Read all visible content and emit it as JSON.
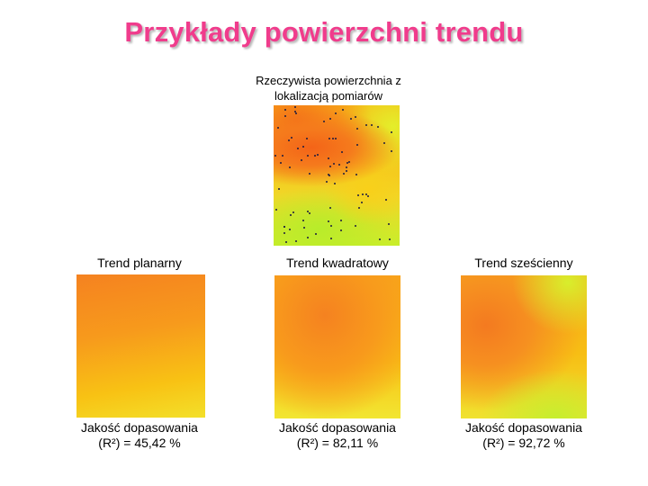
{
  "title": "Przykłady powierzchni trendu",
  "main": {
    "caption_line1": "Rzeczywista powierzchnia z",
    "caption_line2": "lokalizacją pomiarów"
  },
  "panels": [
    {
      "label": "Trend planarny",
      "fit_line1": "Jakość dopasowania",
      "fit_line2": "(R²) = 45,42 %"
    },
    {
      "label": "Trend kwadratowy",
      "fit_line1": "Jakość dopasowania",
      "fit_line2": "(R²) = 82,11 %"
    },
    {
      "label": "Trend sześcienny",
      "fit_line1": "Jakość dopasowania",
      "fit_line2": "(R²) = 92,72 %"
    }
  ]
}
